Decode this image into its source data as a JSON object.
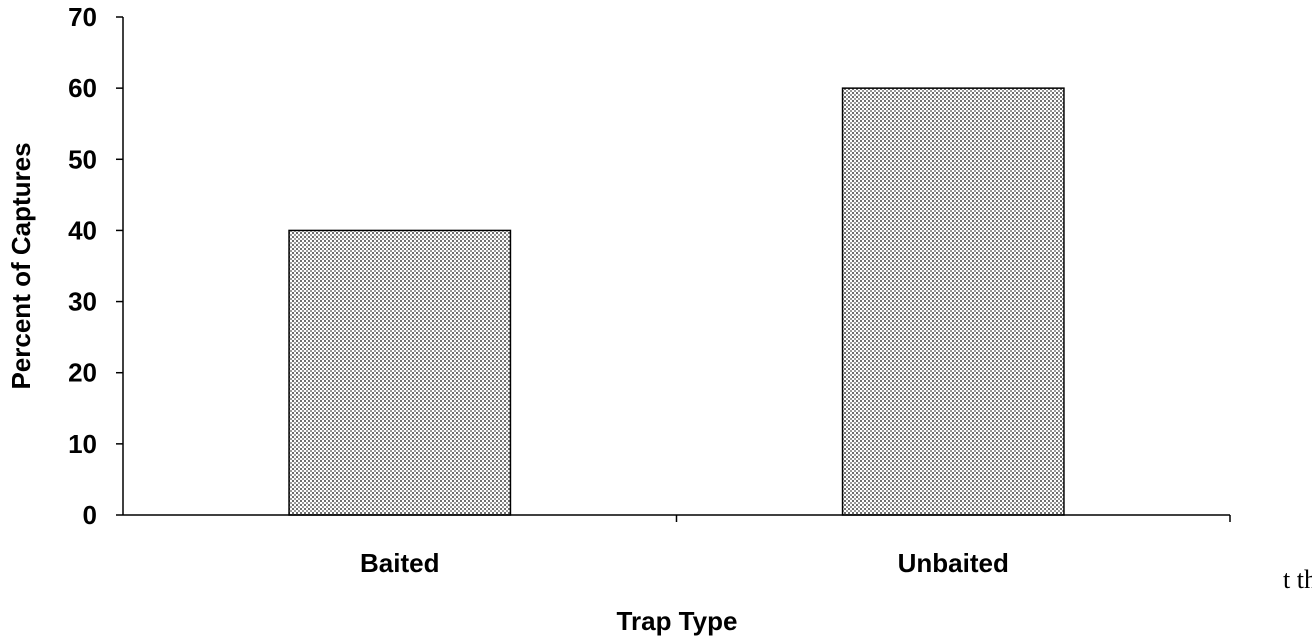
{
  "chart_data": {
    "type": "bar",
    "categories": [
      "Baited",
      "Unbaited"
    ],
    "values": [
      40,
      60
    ],
    "xlabel": "Trap Type",
    "ylabel": "Percent of Captures",
    "ylim": [
      0,
      70
    ],
    "yticks": [
      "0",
      "10",
      "20",
      "30",
      "40",
      "50",
      "60",
      "70"
    ],
    "grid": false,
    "legend": "none",
    "bar_fill": "#d9d9d9",
    "bar_stroke": "#000000"
  },
  "stray_text": "t the"
}
